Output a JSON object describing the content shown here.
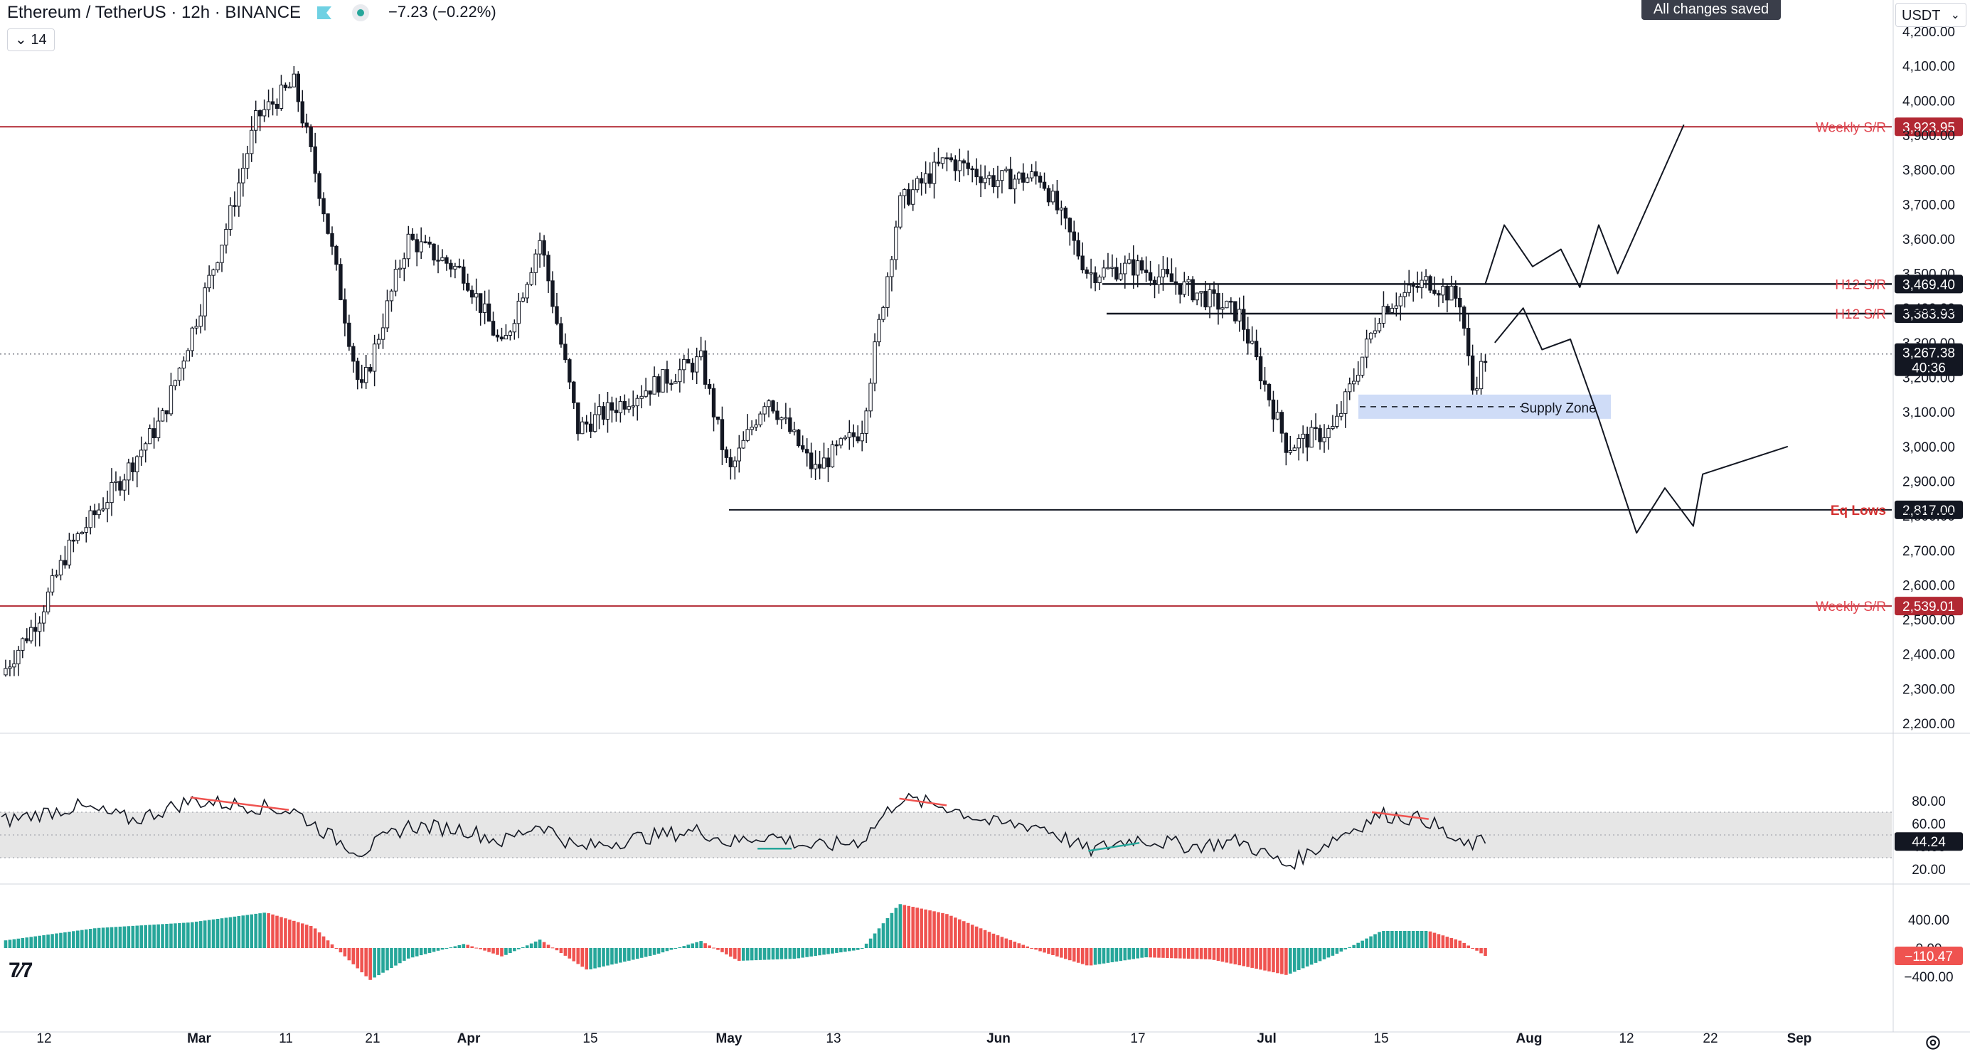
{
  "header": {
    "symbol_line": "Ethereum / TetherUS · 12h · BINANCE",
    "change": "−7.23 (−0.22%)",
    "indicator_count": "14",
    "saved_status": "All changes saved",
    "currency": "USDT"
  },
  "icons": {
    "flag": "flag-icon",
    "status": "status-dot-icon",
    "collapse": "chevron-down-icon",
    "logo": "tradingview-logo-icon",
    "settings": "gear-icon"
  },
  "colors": {
    "up": "#26a69a",
    "down": "#ef5350",
    "weekly": "#b22833",
    "weekly_label": "#e0414b",
    "h12_label": "#e0414b",
    "eq_label": "#d32f2f",
    "supply_zone": "#cfdcf7",
    "rsi_band": "#e6e6e6",
    "candle": "#131722"
  },
  "chart_data": [
    {
      "type": "candlestick",
      "symbol": "ETHUSDT",
      "timeframe": "12h",
      "ylim": [
        2200,
        4200
      ],
      "y_ticks": [
        2200,
        2300,
        2400,
        2500,
        2600,
        2700,
        2800,
        2900,
        3000,
        3100,
        3200,
        3300,
        3400,
        3500,
        3600,
        3700,
        3800,
        3900,
        4000,
        4100,
        4200
      ],
      "x_tick_labels": [
        "12",
        "Mar",
        "11",
        "21",
        "Apr",
        "15",
        "May",
        "13",
        "Jun",
        "17",
        "Jul",
        "15",
        "Aug",
        "12",
        "22",
        "Sep"
      ],
      "price_path": [
        {
          "x": 0,
          "y": 2340
        },
        {
          "x": 0.02,
          "y": 2510
        },
        {
          "x": 0.035,
          "y": 2700
        },
        {
          "x": 0.06,
          "y": 2880
        },
        {
          "x": 0.085,
          "y": 3080
        },
        {
          "x": 0.105,
          "y": 3400
        },
        {
          "x": 0.12,
          "y": 3650
        },
        {
          "x": 0.135,
          "y": 3950
        },
        {
          "x": 0.155,
          "y": 4050
        },
        {
          "x": 0.17,
          "y": 3700
        },
        {
          "x": 0.19,
          "y": 3150
        },
        {
          "x": 0.215,
          "y": 3600
        },
        {
          "x": 0.245,
          "y": 3500
        },
        {
          "x": 0.265,
          "y": 3280
        },
        {
          "x": 0.285,
          "y": 3600
        },
        {
          "x": 0.305,
          "y": 3050
        },
        {
          "x": 0.335,
          "y": 3150
        },
        {
          "x": 0.37,
          "y": 3250
        },
        {
          "x": 0.385,
          "y": 2920
        },
        {
          "x": 0.405,
          "y": 3150
        },
        {
          "x": 0.43,
          "y": 2930
        },
        {
          "x": 0.455,
          "y": 3050
        },
        {
          "x": 0.475,
          "y": 3700
        },
        {
          "x": 0.5,
          "y": 3830
        },
        {
          "x": 0.525,
          "y": 3770
        },
        {
          "x": 0.55,
          "y": 3780
        },
        {
          "x": 0.575,
          "y": 3500
        },
        {
          "x": 0.6,
          "y": 3520
        },
        {
          "x": 0.63,
          "y": 3450
        },
        {
          "x": 0.655,
          "y": 3380
        },
        {
          "x": 0.68,
          "y": 3000
        },
        {
          "x": 0.705,
          "y": 3050
        },
        {
          "x": 0.73,
          "y": 3400
        },
        {
          "x": 0.755,
          "y": 3480
        },
        {
          "x": 0.772,
          "y": 3420
        },
        {
          "x": 0.778,
          "y": 3160
        },
        {
          "x": 0.785,
          "y": 3260
        }
      ],
      "levels": [
        {
          "label": "Weekly S/R",
          "value": 3923.95,
          "value_label": "3,923.95",
          "kind": "weekly"
        },
        {
          "label": "H12 S/R",
          "value": 3469.4,
          "value_label": "3,469.40",
          "kind": "h12"
        },
        {
          "label": "H12 S/R",
          "value": 3383.93,
          "value_label": "3,383.93",
          "kind": "h12"
        },
        {
          "label": "Eq Lows",
          "value": 2817.0,
          "value_label": "2,817.00",
          "kind": "eq"
        },
        {
          "label": "Weekly S/R",
          "value": 2539.01,
          "value_label": "2,539.01",
          "kind": "weekly"
        }
      ],
      "annotations": [
        {
          "label": "Supply Zone",
          "y_range": [
            3080,
            3150
          ]
        }
      ],
      "current_price": {
        "value": 3267.38,
        "label": "3,267.38",
        "countdown": "40:36"
      },
      "projection_paths": [
        [
          {
            "x": 0.785,
            "y": 3470
          },
          {
            "x": 0.795,
            "y": 3640
          },
          {
            "x": 0.81,
            "y": 3520
          },
          {
            "x": 0.825,
            "y": 3570
          },
          {
            "x": 0.835,
            "y": 3460
          },
          {
            "x": 0.845,
            "y": 3640
          },
          {
            "x": 0.855,
            "y": 3500
          },
          {
            "x": 0.89,
            "y": 3930
          }
        ],
        [
          {
            "x": 0.79,
            "y": 3300
          },
          {
            "x": 0.805,
            "y": 3400
          },
          {
            "x": 0.815,
            "y": 3280
          },
          {
            "x": 0.83,
            "y": 3310
          },
          {
            "x": 0.845,
            "y": 3080
          },
          {
            "x": 0.865,
            "y": 2750
          },
          {
            "x": 0.88,
            "y": 2880
          },
          {
            "x": 0.895,
            "y": 2770
          },
          {
            "x": 0.9,
            "y": 2920
          },
          {
            "x": 0.945,
            "y": 3000
          }
        ]
      ]
    },
    {
      "type": "line",
      "name": "RSI",
      "ylim": [
        10,
        90
      ],
      "y_ticks": [
        20,
        40,
        60,
        80
      ],
      "band": [
        30,
        70
      ],
      "current_value": "44.24",
      "series": [
        {
          "x": 0,
          "y": 62
        },
        {
          "x": 0.04,
          "y": 75
        },
        {
          "x": 0.07,
          "y": 63
        },
        {
          "x": 0.1,
          "y": 80
        },
        {
          "x": 0.13,
          "y": 76
        },
        {
          "x": 0.155,
          "y": 71
        },
        {
          "x": 0.175,
          "y": 48
        },
        {
          "x": 0.19,
          "y": 35
        },
        {
          "x": 0.215,
          "y": 58
        },
        {
          "x": 0.245,
          "y": 55
        },
        {
          "x": 0.265,
          "y": 44
        },
        {
          "x": 0.285,
          "y": 60
        },
        {
          "x": 0.305,
          "y": 38
        },
        {
          "x": 0.335,
          "y": 47
        },
        {
          "x": 0.37,
          "y": 54
        },
        {
          "x": 0.385,
          "y": 43
        },
        {
          "x": 0.405,
          "y": 50
        },
        {
          "x": 0.43,
          "y": 39
        },
        {
          "x": 0.455,
          "y": 45
        },
        {
          "x": 0.475,
          "y": 82
        },
        {
          "x": 0.5,
          "y": 75
        },
        {
          "x": 0.525,
          "y": 60
        },
        {
          "x": 0.55,
          "y": 58
        },
        {
          "x": 0.575,
          "y": 36
        },
        {
          "x": 0.6,
          "y": 47
        },
        {
          "x": 0.63,
          "y": 40
        },
        {
          "x": 0.655,
          "y": 45
        },
        {
          "x": 0.68,
          "y": 23
        },
        {
          "x": 0.705,
          "y": 47
        },
        {
          "x": 0.73,
          "y": 68
        },
        {
          "x": 0.755,
          "y": 63
        },
        {
          "x": 0.772,
          "y": 40
        },
        {
          "x": 0.785,
          "y": 44
        }
      ]
    },
    {
      "type": "bar",
      "name": "Histogram",
      "ylim": [
        -600,
        700
      ],
      "y_ticks": [
        -400,
        0,
        400
      ],
      "y_tick_labels": [
        "−400.00",
        "0.00",
        "400.00"
      ],
      "current_value": "−110.47",
      "series": [
        {
          "x": 0,
          "y": 100
        },
        {
          "x": 0.05,
          "y": 280
        },
        {
          "x": 0.1,
          "y": 360
        },
        {
          "x": 0.14,
          "y": 500
        },
        {
          "x": 0.165,
          "y": 300
        },
        {
          "x": 0.195,
          "y": -450
        },
        {
          "x": 0.215,
          "y": -150
        },
        {
          "x": 0.245,
          "y": 60
        },
        {
          "x": 0.265,
          "y": -120
        },
        {
          "x": 0.285,
          "y": 120
        },
        {
          "x": 0.31,
          "y": -310
        },
        {
          "x": 0.345,
          "y": -100
        },
        {
          "x": 0.37,
          "y": 100
        },
        {
          "x": 0.39,
          "y": -180
        },
        {
          "x": 0.42,
          "y": -150
        },
        {
          "x": 0.455,
          "y": -20
        },
        {
          "x": 0.475,
          "y": 620
        },
        {
          "x": 0.5,
          "y": 480
        },
        {
          "x": 0.525,
          "y": 200
        },
        {
          "x": 0.55,
          "y": -50
        },
        {
          "x": 0.575,
          "y": -250
        },
        {
          "x": 0.605,
          "y": -130
        },
        {
          "x": 0.64,
          "y": -160
        },
        {
          "x": 0.68,
          "y": -380
        },
        {
          "x": 0.705,
          "y": -100
        },
        {
          "x": 0.73,
          "y": 240
        },
        {
          "x": 0.755,
          "y": 240
        },
        {
          "x": 0.772,
          "y": 100
        },
        {
          "x": 0.785,
          "y": -110
        }
      ]
    }
  ]
}
